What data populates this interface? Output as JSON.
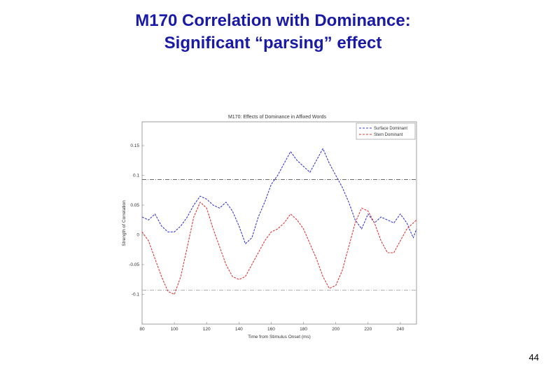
{
  "slide": {
    "title_line1": "M170 Correlation with Dominance:",
    "title_line2": "Significant “parsing” effect",
    "page_number": "44"
  },
  "colors": {
    "title": "#1a1aa8",
    "surface_dominant": "#3b3bd6",
    "stem_dominant": "#e23a3a",
    "upper_threshold": "#555555",
    "lower_threshold": "#aaaaaa"
  },
  "chart_data": {
    "type": "line",
    "title": "M170: Effects of Dominance in Affixed Words",
    "xlabel": "Time from Stimulus Onset (ms)",
    "ylabel": "Strength of Correlation",
    "xlim": [
      80,
      250
    ],
    "ylim": [
      -0.15,
      0.19
    ],
    "xticks": [
      80,
      100,
      120,
      140,
      160,
      180,
      200,
      220,
      240
    ],
    "yticks": [
      -0.1,
      -0.05,
      0,
      0.05,
      0.1,
      0.15
    ],
    "xtick_labels": [
      "80",
      "100",
      "120",
      "140",
      "160",
      "180",
      "200",
      "220",
      "240"
    ],
    "ytick_labels": [
      "-0.1",
      "-0.05",
      "0",
      "0.05",
      "0.1",
      "0.15"
    ],
    "legend_position": "top-right",
    "grid": false,
    "series": [
      {
        "name": "Surface Dominant",
        "x": [
          80,
          84,
          88,
          92,
          96,
          100,
          104,
          108,
          112,
          116,
          120,
          124,
          128,
          132,
          136,
          140,
          144,
          148,
          152,
          156,
          160,
          164,
          168,
          172,
          176,
          180,
          184,
          188,
          192,
          196,
          200,
          204,
          208,
          212,
          216,
          220,
          224,
          228,
          232,
          236,
          240,
          244,
          248,
          250
        ],
        "values": [
          0.03,
          0.025,
          0.035,
          0.015,
          0.005,
          0.005,
          0.015,
          0.03,
          0.05,
          0.065,
          0.06,
          0.05,
          0.045,
          0.055,
          0.04,
          0.015,
          -0.015,
          -0.005,
          0.03,
          0.055,
          0.085,
          0.1,
          0.12,
          0.14,
          0.125,
          0.115,
          0.105,
          0.125,
          0.145,
          0.12,
          0.1,
          0.08,
          0.055,
          0.025,
          0.01,
          0.035,
          0.02,
          0.03,
          0.025,
          0.02,
          0.035,
          0.02,
          -0.005,
          0.01
        ]
      },
      {
        "name": "Stem Dominant",
        "x": [
          80,
          84,
          88,
          92,
          96,
          100,
          104,
          108,
          112,
          116,
          120,
          124,
          128,
          132,
          136,
          140,
          144,
          148,
          152,
          156,
          160,
          164,
          168,
          172,
          176,
          180,
          184,
          188,
          192,
          196,
          200,
          204,
          208,
          212,
          216,
          220,
          224,
          228,
          232,
          236,
          240,
          244,
          248,
          250
        ],
        "values": [
          0.005,
          -0.01,
          -0.04,
          -0.07,
          -0.095,
          -0.1,
          -0.07,
          -0.02,
          0.03,
          0.055,
          0.045,
          0.01,
          -0.02,
          -0.05,
          -0.07,
          -0.075,
          -0.07,
          -0.05,
          -0.03,
          -0.01,
          0.005,
          0.01,
          0.02,
          0.035,
          0.025,
          0.01,
          -0.015,
          -0.04,
          -0.07,
          -0.09,
          -0.085,
          -0.06,
          -0.02,
          0.02,
          0.045,
          0.04,
          0.02,
          -0.01,
          -0.03,
          -0.03,
          -0.01,
          0.01,
          0.02,
          0.025
        ]
      }
    ],
    "reference_lines": [
      {
        "name": "significance-upper",
        "y": 0.093,
        "style": "dash-dot"
      },
      {
        "name": "significance-lower",
        "y": -0.093,
        "style": "dash-dot"
      }
    ]
  }
}
